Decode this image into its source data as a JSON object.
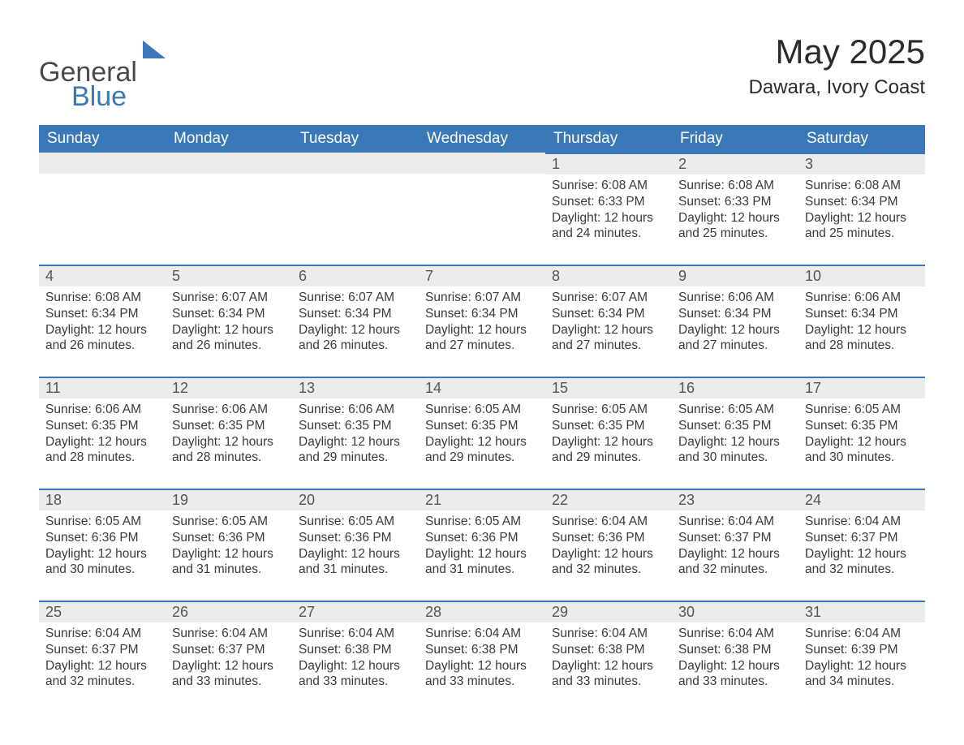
{
  "brand": {
    "word1": "General",
    "word2": "Blue",
    "logo_color": "#3b78b8"
  },
  "title": "May 2025",
  "location": "Dawara, Ivory Coast",
  "colors": {
    "header_bg": "#3b78b8",
    "header_text": "#ffffff",
    "daybar_bg": "#ececec",
    "daybar_border": "#3b78b8",
    "body_text": "#3a3a3a",
    "page_bg": "#ffffff"
  },
  "weekdays": [
    "Sunday",
    "Monday",
    "Tuesday",
    "Wednesday",
    "Thursday",
    "Friday",
    "Saturday"
  ],
  "labels": {
    "sunrise": "Sunrise",
    "sunset": "Sunset",
    "daylight": "Daylight"
  },
  "weeks": [
    [
      null,
      null,
      null,
      null,
      {
        "n": "1",
        "sunrise": "6:08 AM",
        "sunset": "6:33 PM",
        "daylight": "12 hours and 24 minutes."
      },
      {
        "n": "2",
        "sunrise": "6:08 AM",
        "sunset": "6:33 PM",
        "daylight": "12 hours and 25 minutes."
      },
      {
        "n": "3",
        "sunrise": "6:08 AM",
        "sunset": "6:34 PM",
        "daylight": "12 hours and 25 minutes."
      }
    ],
    [
      {
        "n": "4",
        "sunrise": "6:08 AM",
        "sunset": "6:34 PM",
        "daylight": "12 hours and 26 minutes."
      },
      {
        "n": "5",
        "sunrise": "6:07 AM",
        "sunset": "6:34 PM",
        "daylight": "12 hours and 26 minutes."
      },
      {
        "n": "6",
        "sunrise": "6:07 AM",
        "sunset": "6:34 PM",
        "daylight": "12 hours and 26 minutes."
      },
      {
        "n": "7",
        "sunrise": "6:07 AM",
        "sunset": "6:34 PM",
        "daylight": "12 hours and 27 minutes."
      },
      {
        "n": "8",
        "sunrise": "6:07 AM",
        "sunset": "6:34 PM",
        "daylight": "12 hours and 27 minutes."
      },
      {
        "n": "9",
        "sunrise": "6:06 AM",
        "sunset": "6:34 PM",
        "daylight": "12 hours and 27 minutes."
      },
      {
        "n": "10",
        "sunrise": "6:06 AM",
        "sunset": "6:34 PM",
        "daylight": "12 hours and 28 minutes."
      }
    ],
    [
      {
        "n": "11",
        "sunrise": "6:06 AM",
        "sunset": "6:35 PM",
        "daylight": "12 hours and 28 minutes."
      },
      {
        "n": "12",
        "sunrise": "6:06 AM",
        "sunset": "6:35 PM",
        "daylight": "12 hours and 28 minutes."
      },
      {
        "n": "13",
        "sunrise": "6:06 AM",
        "sunset": "6:35 PM",
        "daylight": "12 hours and 29 minutes."
      },
      {
        "n": "14",
        "sunrise": "6:05 AM",
        "sunset": "6:35 PM",
        "daylight": "12 hours and 29 minutes."
      },
      {
        "n": "15",
        "sunrise": "6:05 AM",
        "sunset": "6:35 PM",
        "daylight": "12 hours and 29 minutes."
      },
      {
        "n": "16",
        "sunrise": "6:05 AM",
        "sunset": "6:35 PM",
        "daylight": "12 hours and 30 minutes."
      },
      {
        "n": "17",
        "sunrise": "6:05 AM",
        "sunset": "6:35 PM",
        "daylight": "12 hours and 30 minutes."
      }
    ],
    [
      {
        "n": "18",
        "sunrise": "6:05 AM",
        "sunset": "6:36 PM",
        "daylight": "12 hours and 30 minutes."
      },
      {
        "n": "19",
        "sunrise": "6:05 AM",
        "sunset": "6:36 PM",
        "daylight": "12 hours and 31 minutes."
      },
      {
        "n": "20",
        "sunrise": "6:05 AM",
        "sunset": "6:36 PM",
        "daylight": "12 hours and 31 minutes."
      },
      {
        "n": "21",
        "sunrise": "6:05 AM",
        "sunset": "6:36 PM",
        "daylight": "12 hours and 31 minutes."
      },
      {
        "n": "22",
        "sunrise": "6:04 AM",
        "sunset": "6:36 PM",
        "daylight": "12 hours and 32 minutes."
      },
      {
        "n": "23",
        "sunrise": "6:04 AM",
        "sunset": "6:37 PM",
        "daylight": "12 hours and 32 minutes."
      },
      {
        "n": "24",
        "sunrise": "6:04 AM",
        "sunset": "6:37 PM",
        "daylight": "12 hours and 32 minutes."
      }
    ],
    [
      {
        "n": "25",
        "sunrise": "6:04 AM",
        "sunset": "6:37 PM",
        "daylight": "12 hours and 32 minutes."
      },
      {
        "n": "26",
        "sunrise": "6:04 AM",
        "sunset": "6:37 PM",
        "daylight": "12 hours and 33 minutes."
      },
      {
        "n": "27",
        "sunrise": "6:04 AM",
        "sunset": "6:38 PM",
        "daylight": "12 hours and 33 minutes."
      },
      {
        "n": "28",
        "sunrise": "6:04 AM",
        "sunset": "6:38 PM",
        "daylight": "12 hours and 33 minutes."
      },
      {
        "n": "29",
        "sunrise": "6:04 AM",
        "sunset": "6:38 PM",
        "daylight": "12 hours and 33 minutes."
      },
      {
        "n": "30",
        "sunrise": "6:04 AM",
        "sunset": "6:38 PM",
        "daylight": "12 hours and 33 minutes."
      },
      {
        "n": "31",
        "sunrise": "6:04 AM",
        "sunset": "6:39 PM",
        "daylight": "12 hours and 34 minutes."
      }
    ]
  ]
}
